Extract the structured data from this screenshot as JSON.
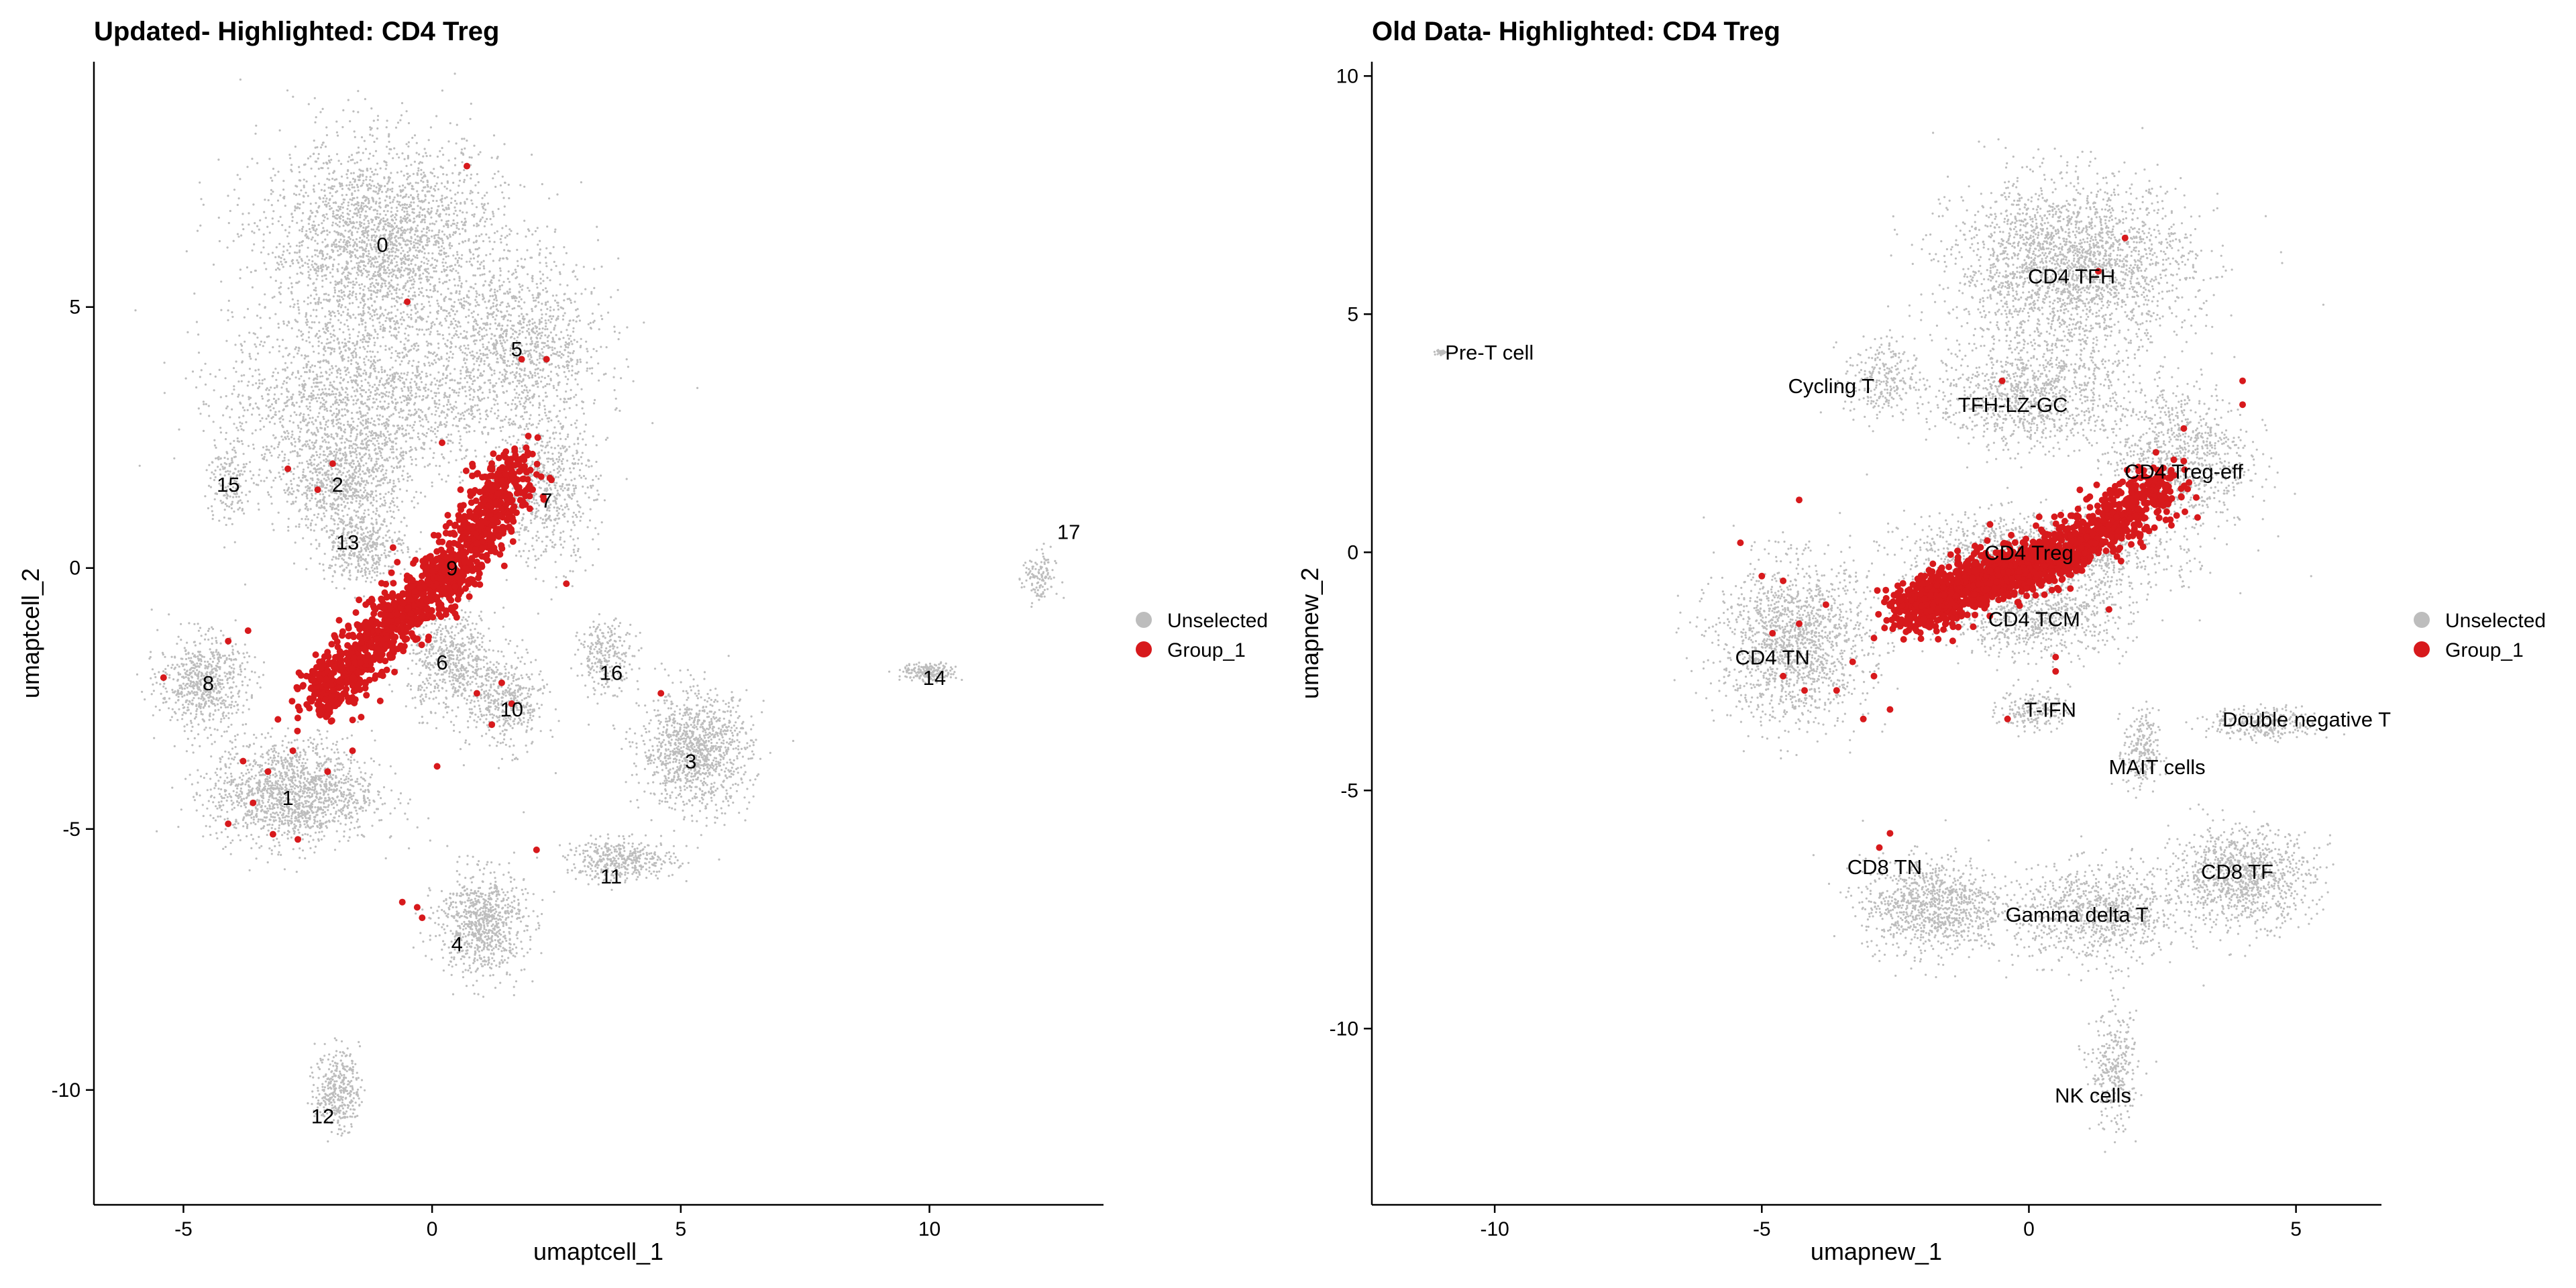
{
  "colors": {
    "unselected": "#bdbdbd",
    "group": "#d7191c"
  },
  "chart_data": [
    {
      "type": "scatter",
      "title": "Updated- Highlighted: CD4 Treg",
      "xlabel": "umaptcell_1",
      "ylabel": "umaptcell_2",
      "xlim": [
        -6.8,
        13.5
      ],
      "ylim": [
        -12.2,
        9.7
      ],
      "xticks": [
        -5,
        0,
        5,
        10
      ],
      "xtick_labels": [
        "-5",
        "0",
        "5",
        "10"
      ],
      "yticks": [
        -10,
        -5,
        0,
        5
      ],
      "ytick_labels": [
        "-10",
        "-5",
        "0",
        "5"
      ],
      "grid": false,
      "legend": {
        "position": "right",
        "items": [
          {
            "label": "Unselected",
            "color": "#bdbdbd"
          },
          {
            "label": "Group_1",
            "color": "#d7191c"
          }
        ]
      },
      "clusters": [
        {
          "label": "0",
          "x": -1.0,
          "y": 6.2,
          "sx": 2.2,
          "sy": 1.8,
          "n": 2600
        },
        {
          "label": "0",
          "x": -1.5,
          "y": 3.2,
          "sx": 2.4,
          "sy": 1.5,
          "n": 1800
        },
        {
          "label": "5",
          "x": 1.8,
          "y": 4.2,
          "sx": 1.5,
          "sy": 1.5,
          "n": 1100
        },
        {
          "label": "7",
          "x": 2.3,
          "y": 1.5,
          "sx": 0.9,
          "sy": 1.3,
          "n": 600
        },
        {
          "label": "2",
          "x": -1.8,
          "y": 1.6,
          "sx": 1.2,
          "sy": 0.8,
          "n": 700
        },
        {
          "label": "13",
          "x": -1.4,
          "y": 0.4,
          "sx": 0.8,
          "sy": 0.6,
          "n": 400
        },
        {
          "label": "15",
          "x": -4.1,
          "y": 1.6,
          "sx": 0.4,
          "sy": 0.8,
          "n": 150
        },
        {
          "label": "8",
          "x": -4.6,
          "y": -2.2,
          "sx": 0.8,
          "sy": 0.8,
          "n": 650
        },
        {
          "label": "1",
          "x": -2.8,
          "y": -4.3,
          "sx": 1.5,
          "sy": 0.9,
          "n": 1500
        },
        {
          "label": "6",
          "x": 0.4,
          "y": -1.8,
          "sx": 0.8,
          "sy": 0.9,
          "n": 600
        },
        {
          "label": "10",
          "x": 1.5,
          "y": -2.6,
          "sx": 0.7,
          "sy": 0.8,
          "n": 400
        },
        {
          "label": "16",
          "x": 3.5,
          "y": -1.7,
          "sx": 0.5,
          "sy": 0.6,
          "n": 250
        },
        {
          "label": "3",
          "x": 5.3,
          "y": -3.5,
          "sx": 1.0,
          "sy": 1.0,
          "n": 1100
        },
        {
          "label": "11",
          "x": 3.8,
          "y": -5.6,
          "sx": 1.0,
          "sy": 0.35,
          "n": 400
        },
        {
          "label": "4",
          "x": 1.0,
          "y": -6.8,
          "sx": 0.8,
          "sy": 0.9,
          "n": 800
        },
        {
          "label": "12",
          "x": -1.9,
          "y": -10.0,
          "sx": 0.4,
          "sy": 0.7,
          "n": 350
        },
        {
          "label": "14",
          "x": 10.0,
          "y": -2.0,
          "sx": 0.5,
          "sy": 0.15,
          "n": 200
        },
        {
          "label": "17",
          "x": 12.2,
          "y": -0.2,
          "sx": 0.3,
          "sy": 0.5,
          "n": 120
        }
      ],
      "labels": [
        {
          "text": "0",
          "x": -1.0,
          "y": 6.2
        },
        {
          "text": "5",
          "x": 1.7,
          "y": 4.2
        },
        {
          "text": "2",
          "x": -1.9,
          "y": 1.6
        },
        {
          "text": "15",
          "x": -4.1,
          "y": 1.6
        },
        {
          "text": "7",
          "x": 2.3,
          "y": 1.3
        },
        {
          "text": "13",
          "x": -1.7,
          "y": 0.5
        },
        {
          "text": "9",
          "x": 0.4,
          "y": 0.0
        },
        {
          "text": "17",
          "x": 12.8,
          "y": 0.7
        },
        {
          "text": "6",
          "x": 0.2,
          "y": -1.8
        },
        {
          "text": "8",
          "x": -4.5,
          "y": -2.2
        },
        {
          "text": "16",
          "x": 3.6,
          "y": -2.0
        },
        {
          "text": "14",
          "x": 10.1,
          "y": -2.1
        },
        {
          "text": "10",
          "x": 1.6,
          "y": -2.7
        },
        {
          "text": "3",
          "x": 5.2,
          "y": -3.7
        },
        {
          "text": "1",
          "x": -2.9,
          "y": -4.4
        },
        {
          "text": "11",
          "x": 3.6,
          "y": -5.9
        },
        {
          "text": "4",
          "x": 0.5,
          "y": -7.2
        },
        {
          "text": "12",
          "x": -2.2,
          "y": -10.5
        }
      ],
      "highlight": {
        "name": "Group_1",
        "ridge": [
          {
            "x": -2.3,
            "y": -2.6
          },
          {
            "x": -1.0,
            "y": -1.2
          },
          {
            "x": 0.5,
            "y": 0.0
          },
          {
            "x": 1.8,
            "y": 2.1
          }
        ],
        "n_ridge": 1400,
        "outliers": [
          {
            "x": 0.7,
            "y": 7.7
          },
          {
            "x": -0.5,
            "y": 5.1
          },
          {
            "x": 1.8,
            "y": 4.0
          },
          {
            "x": 2.3,
            "y": 4.0
          },
          {
            "x": -2.0,
            "y": 2.0
          },
          {
            "x": -2.3,
            "y": 1.5
          },
          {
            "x": -2.9,
            "y": 1.9
          },
          {
            "x": 0.2,
            "y": 2.4
          },
          {
            "x": 2.7,
            "y": -0.3
          },
          {
            "x": -5.4,
            "y": -2.1
          },
          {
            "x": -4.1,
            "y": -1.4
          },
          {
            "x": -3.7,
            "y": -1.2
          },
          {
            "x": -4.1,
            "y": -4.9
          },
          {
            "x": -3.6,
            "y": -4.5
          },
          {
            "x": -3.2,
            "y": -5.1
          },
          {
            "x": -2.7,
            "y": -5.2
          },
          {
            "x": -3.8,
            "y": -3.7
          },
          {
            "x": -3.3,
            "y": -3.9
          },
          {
            "x": -2.8,
            "y": -3.5
          },
          {
            "x": -3.1,
            "y": -2.9
          },
          {
            "x": -2.1,
            "y": -3.9
          },
          {
            "x": -1.6,
            "y": -3.5
          },
          {
            "x": 0.1,
            "y": -3.8
          },
          {
            "x": 0.9,
            "y": -2.4
          },
          {
            "x": 1.4,
            "y": -2.2
          },
          {
            "x": 1.6,
            "y": -2.6
          },
          {
            "x": 4.6,
            "y": -2.4
          },
          {
            "x": 2.1,
            "y": -5.4
          },
          {
            "x": -0.6,
            "y": -6.4
          },
          {
            "x": -0.3,
            "y": -6.5
          },
          {
            "x": -0.2,
            "y": -6.7
          },
          {
            "x": 1.2,
            "y": -3.0
          }
        ]
      }
    },
    {
      "type": "scatter",
      "title": "Old Data- Highlighted: CD4 Treg",
      "xlabel": "umapnew_1",
      "ylabel": "umapnew_2",
      "xlim": [
        -12.3,
        6.6
      ],
      "ylim": [
        -13.7,
        10.3
      ],
      "xticks": [
        -10,
        -5,
        0,
        5
      ],
      "xtick_labels": [
        "-10",
        "-5",
        "0",
        "5"
      ],
      "yticks": [
        -10,
        -5,
        0,
        5,
        10
      ],
      "ytick_labels": [
        "-10",
        "-5",
        "0",
        "5",
        "10"
      ],
      "grid": false,
      "legend": {
        "position": "right",
        "items": [
          {
            "label": "Unselected",
            "color": "#bdbdbd"
          },
          {
            "label": "Group_1",
            "color": "#d7191c"
          }
        ]
      },
      "clusters": [
        {
          "label": "CD4 TFH",
          "x": 0.8,
          "y": 6.0,
          "sx": 2.0,
          "sy": 1.6,
          "n": 2400
        },
        {
          "label": "TFH-LZ-GC",
          "x": 0.0,
          "y": 3.3,
          "sx": 1.6,
          "sy": 1.0,
          "n": 1000
        },
        {
          "label": "Cycling T",
          "x": -2.8,
          "y": 3.6,
          "sx": 0.6,
          "sy": 0.8,
          "n": 250
        },
        {
          "label": "CD4 Treg-eff",
          "x": 2.8,
          "y": 2.0,
          "sx": 1.2,
          "sy": 1.4,
          "n": 900
        },
        {
          "label": "CD4 Treg",
          "x": 0.1,
          "y": -0.1,
          "sx": 2.2,
          "sy": 0.8,
          "n": 1400
        },
        {
          "label": "CD4 TCM",
          "x": 0.1,
          "y": -1.4,
          "sx": 1.6,
          "sy": 0.7,
          "n": 700
        },
        {
          "label": "CD4 TN",
          "x": -4.4,
          "y": -1.9,
          "sx": 1.3,
          "sy": 1.5,
          "n": 1500
        },
        {
          "label": "T-IFN",
          "x": 0.1,
          "y": -3.3,
          "sx": 0.6,
          "sy": 0.4,
          "n": 180
        },
        {
          "label": "Double negative T",
          "x": 4.4,
          "y": -3.6,
          "sx": 0.9,
          "sy": 0.3,
          "n": 300
        },
        {
          "label": "MAIT cells",
          "x": 2.1,
          "y": -4.2,
          "sx": 0.3,
          "sy": 0.8,
          "n": 220
        },
        {
          "label": "CD8 TN",
          "x": -1.8,
          "y": -7.4,
          "sx": 1.2,
          "sy": 0.9,
          "n": 1000
        },
        {
          "label": "Gamma delta T",
          "x": 1.3,
          "y": -7.6,
          "sx": 1.4,
          "sy": 0.9,
          "n": 900
        },
        {
          "label": "CD8 TF",
          "x": 4.0,
          "y": -6.8,
          "sx": 1.2,
          "sy": 0.9,
          "n": 1000
        },
        {
          "label": "NK cells",
          "x": 1.6,
          "y": -10.9,
          "sx": 0.4,
          "sy": 1.1,
          "n": 300
        },
        {
          "label": "Pre-T cell",
          "x": -11.0,
          "y": 4.2,
          "sx": 0.1,
          "sy": 0.05,
          "n": 40
        }
      ],
      "labels": [
        {
          "text": "CD4 TFH",
          "x": 0.8,
          "y": 5.8
        },
        {
          "text": "Pre-T cell",
          "x": -10.1,
          "y": 4.2
        },
        {
          "text": "Cycling T",
          "x": -3.7,
          "y": 3.5
        },
        {
          "text": "TFH-LZ-GC",
          "x": -0.3,
          "y": 3.1
        },
        {
          "text": "CD4 Treg-eff",
          "x": 2.9,
          "y": 1.7
        },
        {
          "text": "CD4 Treg",
          "x": 0.0,
          "y": 0.0
        },
        {
          "text": "CD4 TCM",
          "x": 0.1,
          "y": -1.4
        },
        {
          "text": "CD4 TN",
          "x": -4.8,
          "y": -2.2
        },
        {
          "text": "T-IFN",
          "x": 0.4,
          "y": -3.3
        },
        {
          "text": "Double negative T",
          "x": 5.2,
          "y": -3.5
        },
        {
          "text": "MAIT cells",
          "x": 2.4,
          "y": -4.5
        },
        {
          "text": "CD8 TN",
          "x": -2.7,
          "y": -6.6
        },
        {
          "text": "CD8 TF",
          "x": 3.9,
          "y": -6.7
        },
        {
          "text": "Gamma delta T",
          "x": 0.9,
          "y": -7.6
        },
        {
          "text": "NK cells",
          "x": 1.2,
          "y": -11.4
        }
      ],
      "highlight": {
        "name": "Group_1",
        "ridge": [
          {
            "x": -2.3,
            "y": -1.3
          },
          {
            "x": -1.0,
            "y": -0.6
          },
          {
            "x": 0.6,
            "y": -0.1
          },
          {
            "x": 2.6,
            "y": 1.5
          }
        ],
        "n_ridge": 1600,
        "outliers": [
          {
            "x": 1.8,
            "y": 6.6
          },
          {
            "x": 1.3,
            "y": 5.9
          },
          {
            "x": -0.5,
            "y": 3.6
          },
          {
            "x": 4.0,
            "y": 3.6
          },
          {
            "x": 4.0,
            "y": 3.1
          },
          {
            "x": 2.9,
            "y": 2.6
          },
          {
            "x": -4.3,
            "y": 1.1
          },
          {
            "x": -5.4,
            "y": 0.2
          },
          {
            "x": -5.0,
            "y": -0.5
          },
          {
            "x": -4.6,
            "y": -0.6
          },
          {
            "x": -3.8,
            "y": -1.1
          },
          {
            "x": -4.3,
            "y": -1.5
          },
          {
            "x": -4.8,
            "y": -1.7
          },
          {
            "x": -4.6,
            "y": -2.6
          },
          {
            "x": -4.2,
            "y": -2.9
          },
          {
            "x": -3.6,
            "y": -2.9
          },
          {
            "x": -3.3,
            "y": -2.3
          },
          {
            "x": -2.9,
            "y": -2.6
          },
          {
            "x": -2.6,
            "y": -3.3
          },
          {
            "x": -3.1,
            "y": -3.5
          },
          {
            "x": -2.6,
            "y": -5.9
          },
          {
            "x": -2.8,
            "y": -6.2
          },
          {
            "x": -0.4,
            "y": -3.5
          },
          {
            "x": 0.5,
            "y": -2.5
          },
          {
            "x": 0.5,
            "y": -2.2
          },
          {
            "x": 1.5,
            "y": -1.2
          },
          {
            "x": -2.4,
            "y": -1.0
          },
          {
            "x": -2.9,
            "y": -1.8
          }
        ]
      }
    }
  ]
}
